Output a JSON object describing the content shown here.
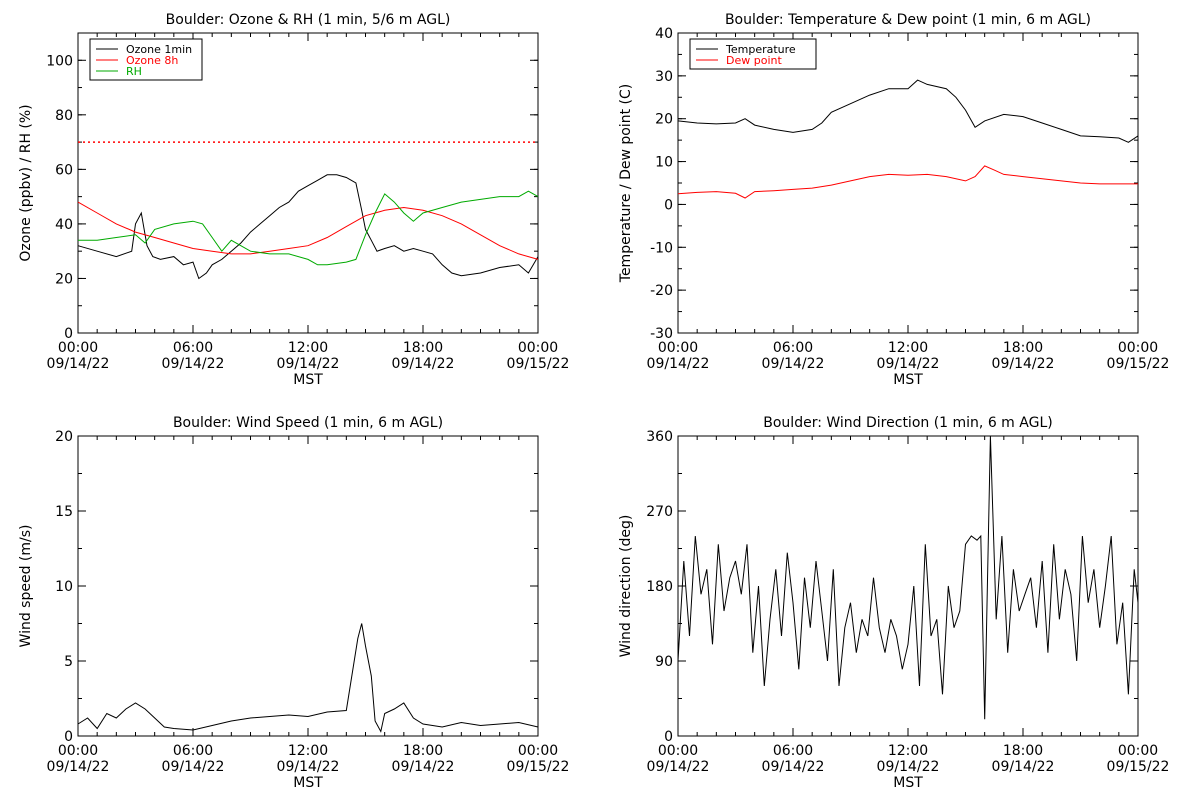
{
  "x_axis": {
    "ticks": [
      "00:00",
      "06:00",
      "12:00",
      "18:00",
      "00:00"
    ],
    "tick_dates": [
      "09/14/22",
      "09/14/22",
      "09/14/22",
      "09/14/22",
      "09/15/22"
    ],
    "label": "MST",
    "range_hours": [
      0,
      24
    ]
  },
  "colors": {
    "black": "#000000",
    "red": "#ff0000",
    "green": "#00aa00"
  },
  "chart_data": [
    {
      "id": "ozone",
      "type": "line",
      "title": "Boulder: Ozone & RH (1 min, 5/6 m AGL)",
      "xlabel": "MST",
      "ylabel": "Ozone (ppbv) / RH (%)",
      "ylim": [
        0,
        110
      ],
      "yticks": [
        0,
        20,
        40,
        60,
        80,
        100
      ],
      "grid": false,
      "legend": "top-left",
      "show_xlabel": true,
      "series": [
        {
          "name": "Ozone 1min",
          "color": "#000000",
          "x": [
            0,
            1,
            2,
            2.8,
            3,
            3.3,
            3.6,
            3.9,
            4.3,
            5,
            5.5,
            6,
            6.3,
            6.7,
            7,
            7.5,
            8,
            8.5,
            9,
            9.5,
            10,
            10.5,
            11,
            11.5,
            12,
            12.5,
            13,
            13.5,
            14,
            14.5,
            14.8,
            15,
            15.3,
            15.6,
            16,
            16.5,
            17,
            17.5,
            18,
            18.5,
            19,
            19.5,
            20,
            21,
            22,
            23,
            23.5,
            24
          ],
          "y": [
            32,
            30,
            28,
            30,
            40,
            44,
            32,
            28,
            27,
            28,
            25,
            26,
            20,
            22,
            25,
            27,
            30,
            33,
            37,
            40,
            43,
            46,
            48,
            52,
            54,
            56,
            58,
            58,
            57,
            55,
            45,
            38,
            34,
            30,
            31,
            32,
            30,
            31,
            30,
            29,
            25,
            22,
            21,
            22,
            24,
            25,
            22,
            28
          ]
        },
        {
          "name": "Ozone 8h",
          "color": "#ff0000",
          "x": [
            0,
            1,
            2,
            3,
            4,
            5,
            6,
            7,
            8,
            9,
            10,
            11,
            12,
            13,
            14,
            15,
            16,
            17,
            18,
            19,
            20,
            21,
            22,
            23,
            24
          ],
          "y": [
            48,
            44,
            40,
            37,
            35,
            33,
            31,
            30,
            29,
            29,
            30,
            31,
            32,
            35,
            39,
            43,
            45,
            46,
            45,
            43,
            40,
            36,
            32,
            29,
            27
          ]
        },
        {
          "name": "RH",
          "color": "#00aa00",
          "x": [
            0,
            1,
            2,
            3,
            3.5,
            4,
            5,
            6,
            6.5,
            7,
            7.5,
            8,
            9,
            10,
            11,
            12,
            12.5,
            13,
            14,
            14.5,
            15,
            15.5,
            16,
            16.5,
            17,
            17.5,
            18,
            19,
            20,
            21,
            22,
            23,
            23.5,
            24
          ],
          "y": [
            34,
            34,
            35,
            36,
            33,
            38,
            40,
            41,
            40,
            35,
            30,
            34,
            30,
            29,
            29,
            27,
            25,
            25,
            26,
            27,
            36,
            44,
            51,
            48,
            44,
            41,
            44,
            46,
            48,
            49,
            50,
            50,
            52,
            50
          ]
        }
      ],
      "reference_lines": [
        {
          "y": 70,
          "color": "#ff0000",
          "style": "dotted"
        }
      ]
    },
    {
      "id": "temp",
      "type": "line",
      "title": "Boulder: Temperature & Dew point (1 min, 6 m AGL)",
      "xlabel": "MST",
      "ylabel": "Temperature / Dew point (C)",
      "ylim": [
        -30,
        40
      ],
      "yticks": [
        -30,
        -20,
        -10,
        0,
        10,
        20,
        30,
        40
      ],
      "grid": false,
      "legend": "top-left",
      "show_xlabel": true,
      "series": [
        {
          "name": "Temperature",
          "color": "#000000",
          "x": [
            0,
            1,
            2,
            3,
            3.5,
            4,
            5,
            6,
            7,
            7.5,
            8,
            9,
            10,
            11,
            12,
            12.5,
            13,
            14,
            14.5,
            15,
            15.5,
            16,
            17,
            18,
            19,
            20,
            21,
            22,
            23,
            23.5,
            24
          ],
          "y": [
            19.5,
            19,
            18.8,
            19,
            20,
            18.5,
            17.5,
            16.8,
            17.5,
            19,
            21.5,
            23.5,
            25.5,
            27,
            27,
            29,
            28,
            27,
            25,
            22,
            18,
            19.5,
            21,
            20.5,
            19,
            17.5,
            16,
            15.8,
            15.5,
            14.5,
            16
          ]
        },
        {
          "name": "Dew point",
          "color": "#ff0000",
          "x": [
            0,
            1,
            2,
            3,
            3.5,
            4,
            5,
            6,
            7,
            8,
            9,
            10,
            11,
            12,
            13,
            14,
            15,
            15.5,
            16,
            16.5,
            17,
            18,
            19,
            20,
            21,
            22,
            23,
            24
          ],
          "y": [
            2.5,
            2.8,
            3,
            2.6,
            1.5,
            3,
            3.2,
            3.5,
            3.8,
            4.5,
            5.5,
            6.5,
            7,
            6.8,
            7,
            6.5,
            5.5,
            6.5,
            9,
            8,
            7,
            6.5,
            6,
            5.5,
            5,
            4.8,
            4.8,
            4.8
          ]
        }
      ]
    },
    {
      "id": "wspd",
      "type": "line",
      "title": "Boulder: Wind Speed (1 min, 6 m AGL)",
      "xlabel": "MST",
      "ylabel": "Wind speed (m/s)",
      "ylim": [
        0,
        20
      ],
      "yticks": [
        0,
        5,
        10,
        15,
        20
      ],
      "grid": false,
      "legend": "none",
      "show_xlabel": true,
      "series": [
        {
          "name": "",
          "color": "#000000",
          "x": [
            0,
            0.5,
            1,
            1.5,
            2,
            2.5,
            3,
            3.5,
            4,
            4.5,
            5,
            6,
            7,
            8,
            9,
            10,
            11,
            12,
            13,
            14,
            14.6,
            14.8,
            15,
            15.3,
            15.5,
            15.8,
            16,
            16.5,
            17,
            17.5,
            18,
            19,
            20,
            21,
            22,
            23,
            24
          ],
          "y": [
            0.8,
            1.2,
            0.5,
            1.5,
            1.2,
            1.8,
            2.2,
            1.8,
            1.2,
            0.6,
            0.5,
            0.4,
            0.7,
            1,
            1.2,
            1.3,
            1.4,
            1.3,
            1.6,
            1.7,
            6.5,
            7.5,
            6,
            4,
            1,
            0.3,
            1.5,
            1.8,
            2.2,
            1.2,
            0.8,
            0.6,
            0.9,
            0.7,
            0.8,
            0.9,
            0.6
          ]
        }
      ]
    },
    {
      "id": "wdir",
      "type": "line",
      "title": "Boulder: Wind Direction (1 min, 6 m AGL)",
      "xlabel": "MST",
      "ylabel": "Wind direction (deg)",
      "ylim": [
        0,
        360
      ],
      "yticks": [
        0,
        90,
        180,
        270,
        360
      ],
      "grid": false,
      "legend": "none",
      "show_xlabel": true,
      "series": [
        {
          "name": "",
          "color": "#000000",
          "x": [
            0,
            0.3,
            0.6,
            0.9,
            1.2,
            1.5,
            1.8,
            2.1,
            2.4,
            2.7,
            3,
            3.3,
            3.6,
            3.9,
            4.2,
            4.5,
            4.8,
            5.1,
            5.4,
            5.7,
            6,
            6.3,
            6.6,
            6.9,
            7.2,
            7.5,
            7.8,
            8.1,
            8.4,
            8.7,
            9,
            9.3,
            9.6,
            9.9,
            10.2,
            10.5,
            10.8,
            11.1,
            11.4,
            11.7,
            12,
            12.3,
            12.6,
            12.9,
            13.2,
            13.5,
            13.8,
            14.1,
            14.4,
            14.7,
            15,
            15.3,
            15.6,
            15.8,
            16,
            16.3,
            16.6,
            16.9,
            17.2,
            17.5,
            17.8,
            18.1,
            18.4,
            18.7,
            19,
            19.3,
            19.6,
            19.9,
            20.2,
            20.5,
            20.8,
            21.1,
            21.4,
            21.7,
            22,
            22.3,
            22.6,
            22.9,
            23.2,
            23.5,
            23.8,
            24
          ],
          "y": [
            90,
            210,
            120,
            240,
            170,
            200,
            110,
            230,
            150,
            190,
            210,
            170,
            230,
            100,
            180,
            60,
            140,
            200,
            120,
            220,
            160,
            80,
            190,
            130,
            210,
            150,
            90,
            200,
            60,
            130,
            160,
            100,
            140,
            120,
            190,
            130,
            100,
            140,
            120,
            80,
            110,
            180,
            60,
            230,
            120,
            140,
            50,
            180,
            130,
            150,
            230,
            240,
            235,
            240,
            20,
            360,
            140,
            240,
            100,
            200,
            150,
            170,
            190,
            130,
            210,
            100,
            230,
            140,
            200,
            170,
            90,
            240,
            160,
            200,
            130,
            180,
            240,
            110,
            160,
            50,
            200,
            160
          ]
        }
      ]
    }
  ]
}
